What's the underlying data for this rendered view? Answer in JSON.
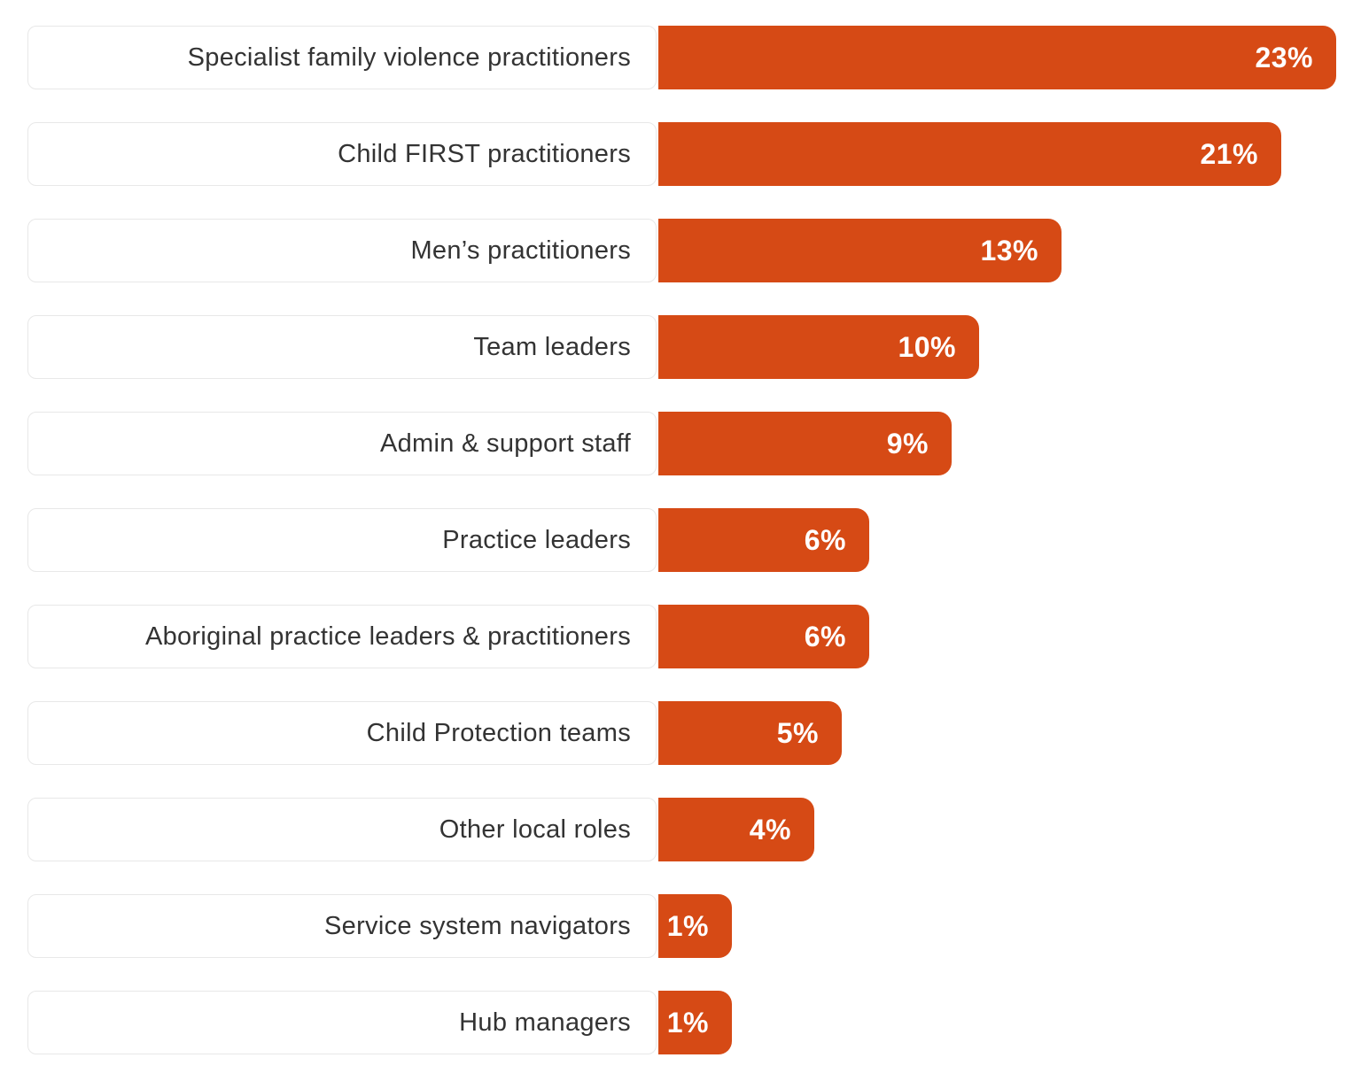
{
  "chart_data": {
    "type": "bar",
    "orientation": "horizontal",
    "categories": [
      "Specialist family violence practitioners",
      "Child FIRST practitioners",
      "Men’s practitioners",
      "Team leaders",
      "Admin & support staff",
      "Practice leaders",
      "Aboriginal practice leaders & practitioners",
      "Child Protection teams",
      "Other local roles",
      "Service system navigators",
      "Hub managers"
    ],
    "values": [
      23,
      21,
      13,
      10,
      9,
      6,
      6,
      5,
      4,
      1,
      1
    ],
    "value_labels": [
      "23%",
      "21%",
      "13%",
      "10%",
      "9%",
      "6%",
      "6%",
      "5%",
      "4%",
      "1%",
      "1%"
    ],
    "unit": "%",
    "xlim": [
      0,
      23
    ],
    "grid": false,
    "legend": false,
    "colors": {
      "bar": "#D64A15",
      "value_text": "#FFFFFF",
      "label_text": "#333333",
      "label_box_border": "#E8E8E8",
      "background": "#FFFFFF"
    }
  }
}
